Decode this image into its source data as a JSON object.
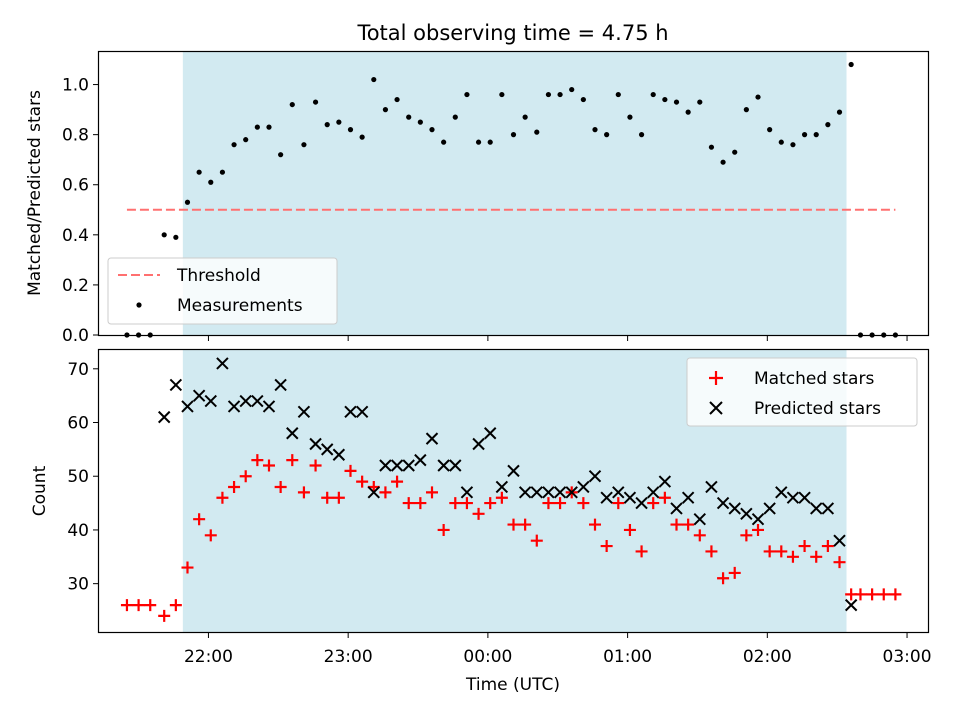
{
  "chart_data": [
    {
      "type": "scatter",
      "title": "Total observing time = 4.75 h",
      "ylabel": "Matched/Predicted stars",
      "xlabel": "",
      "ylim": [
        0,
        1.13
      ],
      "yticks": [
        0.0,
        0.2,
        0.4,
        0.6,
        0.8,
        1.0
      ],
      "ytick_labels": [
        "0.0",
        "0.2",
        "0.4",
        "0.6",
        "0.8",
        "1.0"
      ],
      "highlight_span": {
        "start": "21:49",
        "end": "02:34",
        "color": "#add8e6"
      },
      "legend": {
        "position": "lower-left",
        "entries": [
          "Threshold",
          "Measurements"
        ]
      },
      "threshold": {
        "name": "Threshold",
        "value": 0.5,
        "x_start": "21:25",
        "x_end": "02:55",
        "color": "#ff7070"
      },
      "series": [
        {
          "name": "Measurements",
          "color": "#000000",
          "points": [
            [
              "21:25",
              0.0
            ],
            [
              "21:30",
              0.0
            ],
            [
              "21:35",
              0.0
            ],
            [
              "21:41",
              0.4
            ],
            [
              "21:46",
              0.39
            ],
            [
              "21:51",
              0.53
            ],
            [
              "21:56",
              0.65
            ],
            [
              "22:01",
              0.61
            ],
            [
              "22:06",
              0.65
            ],
            [
              "22:11",
              0.76
            ],
            [
              "22:16",
              0.78
            ],
            [
              "22:21",
              0.83
            ],
            [
              "22:26",
              0.83
            ],
            [
              "22:31",
              0.72
            ],
            [
              "22:36",
              0.92
            ],
            [
              "22:41",
              0.76
            ],
            [
              "22:46",
              0.93
            ],
            [
              "22:51",
              0.84
            ],
            [
              "22:56",
              0.85
            ],
            [
              "23:01",
              0.82
            ],
            [
              "23:06",
              0.79
            ],
            [
              "23:11",
              1.02
            ],
            [
              "23:16",
              0.9
            ],
            [
              "23:21",
              0.94
            ],
            [
              "23:26",
              0.87
            ],
            [
              "23:31",
              0.85
            ],
            [
              "23:36",
              0.82
            ],
            [
              "23:41",
              0.77
            ],
            [
              "23:46",
              0.87
            ],
            [
              "23:51",
              0.96
            ],
            [
              "23:56",
              0.77
            ],
            [
              "00:01",
              0.77
            ],
            [
              "00:06",
              0.96
            ],
            [
              "00:11",
              0.8
            ],
            [
              "00:16",
              0.87
            ],
            [
              "00:21",
              0.81
            ],
            [
              "00:26",
              0.96
            ],
            [
              "00:31",
              0.96
            ],
            [
              "00:36",
              0.98
            ],
            [
              "00:41",
              0.94
            ],
            [
              "00:46",
              0.82
            ],
            [
              "00:51",
              0.8
            ],
            [
              "00:56",
              0.96
            ],
            [
              "01:01",
              0.87
            ],
            [
              "01:06",
              0.8
            ],
            [
              "01:11",
              0.96
            ],
            [
              "01:16",
              0.94
            ],
            [
              "01:21",
              0.93
            ],
            [
              "01:26",
              0.89
            ],
            [
              "01:31",
              0.93
            ],
            [
              "01:36",
              0.75
            ],
            [
              "01:41",
              0.69
            ],
            [
              "01:46",
              0.73
            ],
            [
              "01:51",
              0.9
            ],
            [
              "01:56",
              0.95
            ],
            [
              "02:01",
              0.82
            ],
            [
              "02:06",
              0.77
            ],
            [
              "02:11",
              0.76
            ],
            [
              "02:16",
              0.8
            ],
            [
              "02:21",
              0.8
            ],
            [
              "02:26",
              0.84
            ],
            [
              "02:31",
              0.89
            ],
            [
              "02:36",
              1.08
            ],
            [
              "02:40",
              0.0
            ],
            [
              "02:45",
              0.0
            ],
            [
              "02:50",
              0.0
            ],
            [
              "02:55",
              0.0
            ]
          ]
        }
      ]
    },
    {
      "type": "scatter",
      "title": "",
      "ylabel": "Count",
      "xlabel": "Time (UTC)",
      "ylim": [
        21,
        73.5
      ],
      "yticks": [
        30,
        40,
        50,
        60,
        70
      ],
      "ytick_labels": [
        "30",
        "40",
        "50",
        "60",
        "70"
      ],
      "xlim": [
        "21:13",
        "03:09"
      ],
      "xticks": [
        "22:00",
        "23:00",
        "00:00",
        "01:00",
        "02:00",
        "03:00"
      ],
      "xtick_labels": [
        "22:00",
        "23:00",
        "00:00",
        "01:00",
        "02:00",
        "03:00"
      ],
      "highlight_span": {
        "start": "21:49",
        "end": "02:34",
        "color": "#add8e6"
      },
      "legend": {
        "position": "top-right",
        "entries": [
          "Matched stars",
          "Predicted stars"
        ]
      },
      "series": [
        {
          "name": "Matched stars",
          "marker": "+",
          "color": "#ff0000",
          "points": [
            [
              "21:25",
              26
            ],
            [
              "21:30",
              26
            ],
            [
              "21:35",
              26
            ],
            [
              "21:41",
              24
            ],
            [
              "21:46",
              26
            ],
            [
              "21:51",
              33
            ],
            [
              "21:56",
              42
            ],
            [
              "22:01",
              39
            ],
            [
              "22:06",
              46
            ],
            [
              "22:11",
              48
            ],
            [
              "22:16",
              50
            ],
            [
              "22:21",
              53
            ],
            [
              "22:26",
              52
            ],
            [
              "22:31",
              48
            ],
            [
              "22:36",
              53
            ],
            [
              "22:41",
              47
            ],
            [
              "22:46",
              52
            ],
            [
              "22:51",
              46
            ],
            [
              "22:56",
              46
            ],
            [
              "23:01",
              51
            ],
            [
              "23:06",
              49
            ],
            [
              "23:11",
              48
            ],
            [
              "23:16",
              47
            ],
            [
              "23:21",
              49
            ],
            [
              "23:26",
              45
            ],
            [
              "23:31",
              45
            ],
            [
              "23:36",
              47
            ],
            [
              "23:41",
              40
            ],
            [
              "23:46",
              45
            ],
            [
              "23:51",
              45
            ],
            [
              "23:56",
              43
            ],
            [
              "00:01",
              45
            ],
            [
              "00:06",
              46
            ],
            [
              "00:11",
              41
            ],
            [
              "00:16",
              41
            ],
            [
              "00:21",
              38
            ],
            [
              "00:26",
              45
            ],
            [
              "00:31",
              45
            ],
            [
              "00:36",
              47
            ],
            [
              "00:41",
              45
            ],
            [
              "00:46",
              41
            ],
            [
              "00:51",
              37
            ],
            [
              "00:56",
              45
            ],
            [
              "01:01",
              40
            ],
            [
              "01:06",
              36
            ],
            [
              "01:11",
              45
            ],
            [
              "01:16",
              46
            ],
            [
              "01:21",
              41
            ],
            [
              "01:26",
              41
            ],
            [
              "01:31",
              39
            ],
            [
              "01:36",
              36
            ],
            [
              "01:41",
              31
            ],
            [
              "01:46",
              32
            ],
            [
              "01:51",
              39
            ],
            [
              "01:56",
              40
            ],
            [
              "02:01",
              36
            ],
            [
              "02:06",
              36
            ],
            [
              "02:11",
              35
            ],
            [
              "02:16",
              37
            ],
            [
              "02:21",
              35
            ],
            [
              "02:26",
              37
            ],
            [
              "02:31",
              34
            ],
            [
              "02:36",
              28
            ],
            [
              "02:40",
              28
            ],
            [
              "02:45",
              28
            ],
            [
              "02:50",
              28
            ],
            [
              "02:55",
              28
            ]
          ]
        },
        {
          "name": "Predicted stars",
          "marker": "x",
          "color": "#000000",
          "points": [
            [
              "21:41",
              61
            ],
            [
              "21:46",
              67
            ],
            [
              "21:51",
              63
            ],
            [
              "21:56",
              65
            ],
            [
              "22:01",
              64
            ],
            [
              "22:06",
              71
            ],
            [
              "22:11",
              63
            ],
            [
              "22:16",
              64
            ],
            [
              "22:21",
              64
            ],
            [
              "22:26",
              63
            ],
            [
              "22:31",
              67
            ],
            [
              "22:36",
              58
            ],
            [
              "22:41",
              62
            ],
            [
              "22:46",
              56
            ],
            [
              "22:51",
              55
            ],
            [
              "22:56",
              54
            ],
            [
              "23:01",
              62
            ],
            [
              "23:06",
              62
            ],
            [
              "23:11",
              47
            ],
            [
              "23:16",
              52
            ],
            [
              "23:21",
              52
            ],
            [
              "23:26",
              52
            ],
            [
              "23:31",
              53
            ],
            [
              "23:36",
              57
            ],
            [
              "23:41",
              52
            ],
            [
              "23:46",
              52
            ],
            [
              "23:51",
              47
            ],
            [
              "23:56",
              56
            ],
            [
              "00:01",
              58
            ],
            [
              "00:06",
              48
            ],
            [
              "00:11",
              51
            ],
            [
              "00:16",
              47
            ],
            [
              "00:21",
              47
            ],
            [
              "00:26",
              47
            ],
            [
              "00:31",
              47
            ],
            [
              "00:36",
              47
            ],
            [
              "00:41",
              48
            ],
            [
              "00:46",
              50
            ],
            [
              "00:51",
              46
            ],
            [
              "00:56",
              47
            ],
            [
              "01:01",
              46
            ],
            [
              "01:06",
              45
            ],
            [
              "01:11",
              47
            ],
            [
              "01:16",
              49
            ],
            [
              "01:21",
              44
            ],
            [
              "01:26",
              46
            ],
            [
              "01:31",
              42
            ],
            [
              "01:36",
              48
            ],
            [
              "01:41",
              45
            ],
            [
              "01:46",
              44
            ],
            [
              "01:51",
              43
            ],
            [
              "01:56",
              42
            ],
            [
              "02:01",
              44
            ],
            [
              "02:06",
              47
            ],
            [
              "02:11",
              46
            ],
            [
              "02:16",
              46
            ],
            [
              "02:21",
              44
            ],
            [
              "02:26",
              44
            ],
            [
              "02:31",
              38
            ],
            [
              "02:36",
              26
            ]
          ]
        }
      ]
    }
  ]
}
